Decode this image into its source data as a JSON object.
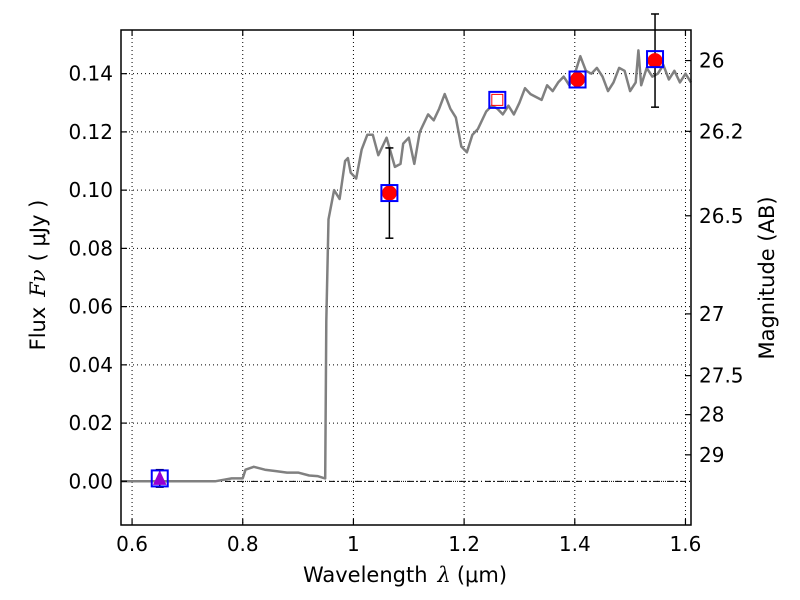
{
  "chart_data": {
    "type": "line",
    "title": "",
    "xlabel": {
      "prefix": "Wavelength",
      "symbol": "λ",
      "unit": "(μm)"
    },
    "ylabel": {
      "prefix": "Flux",
      "symbol": "Fν",
      "unit": "( μJy )"
    },
    "y2label": "Magnitude (AB)",
    "xlim": [
      0.58,
      1.61
    ],
    "ylim": [
      -0.015,
      0.155
    ],
    "x_ticks": [
      0.6,
      0.8,
      1.0,
      1.2,
      1.4,
      1.6
    ],
    "x_tick_labels": [
      "0.6",
      "0.8",
      "1",
      "1.2",
      "1.4",
      "1.6"
    ],
    "y_ticks": [
      0.0,
      0.02,
      0.04,
      0.06,
      0.08,
      0.1,
      0.12,
      0.14
    ],
    "y_tick_labels": [
      "0.00",
      "0.02",
      "0.04",
      "0.06",
      "0.08",
      "0.10",
      "0.12",
      "0.14"
    ],
    "y2_ticks": [
      {
        "label": "26",
        "flux": 0.1445
      },
      {
        "label": "26.2",
        "flux": 0.1202
      },
      {
        "label": "26.5",
        "flux": 0.0912
      },
      {
        "label": "27",
        "flux": 0.0575
      },
      {
        "label": "27.5",
        "flux": 0.0363
      },
      {
        "label": "28",
        "flux": 0.0229
      },
      {
        "label": "29",
        "flux": 0.0091
      }
    ],
    "grid": true,
    "zero_line": true,
    "colors": {
      "model": "#808080",
      "model_points": "#0000ff",
      "detections": "#ff0000",
      "upper_limit": "#9400d3",
      "errorbar": "#000000"
    },
    "model_spectrum": {
      "x": [
        0.58,
        0.65,
        0.7,
        0.75,
        0.78,
        0.8,
        0.805,
        0.82,
        0.84,
        0.86,
        0.88,
        0.9,
        0.92,
        0.935,
        0.945,
        0.949,
        0.951,
        0.955,
        0.965,
        0.975,
        0.985,
        0.99,
        0.995,
        1.005,
        1.015,
        1.025,
        1.035,
        1.045,
        1.06,
        1.075,
        1.085,
        1.09,
        1.1,
        1.11,
        1.12,
        1.135,
        1.145,
        1.155,
        1.165,
        1.175,
        1.185,
        1.195,
        1.205,
        1.215,
        1.225,
        1.24,
        1.25,
        1.26,
        1.27,
        1.28,
        1.29,
        1.3,
        1.31,
        1.32,
        1.33,
        1.34,
        1.35,
        1.36,
        1.37,
        1.38,
        1.39,
        1.4,
        1.405,
        1.41,
        1.42,
        1.43,
        1.44,
        1.45,
        1.46,
        1.47,
        1.48,
        1.49,
        1.5,
        1.51,
        1.515,
        1.52,
        1.53,
        1.54,
        1.55,
        1.56,
        1.57,
        1.58,
        1.59,
        1.6,
        1.61
      ],
      "y": [
        0.0,
        0.0,
        0.0,
        0.0,
        0.001,
        0.001,
        0.004,
        0.005,
        0.004,
        0.0035,
        0.003,
        0.003,
        0.002,
        0.0018,
        0.0012,
        0.001,
        0.055,
        0.09,
        0.1,
        0.097,
        0.11,
        0.111,
        0.106,
        0.104,
        0.114,
        0.119,
        0.119,
        0.112,
        0.118,
        0.108,
        0.109,
        0.116,
        0.118,
        0.109,
        0.12,
        0.126,
        0.124,
        0.128,
        0.133,
        0.128,
        0.125,
        0.115,
        0.113,
        0.119,
        0.121,
        0.127,
        0.129,
        0.128,
        0.126,
        0.129,
        0.126,
        0.13,
        0.135,
        0.133,
        0.132,
        0.131,
        0.136,
        0.134,
        0.137,
        0.139,
        0.136,
        0.14,
        0.143,
        0.146,
        0.141,
        0.14,
        0.142,
        0.139,
        0.134,
        0.137,
        0.142,
        0.141,
        0.134,
        0.137,
        0.148,
        0.136,
        0.142,
        0.139,
        0.14,
        0.143,
        0.138,
        0.141,
        0.137,
        0.14,
        0.137
      ]
    },
    "model_points": {
      "x": [
        0.65,
        1.065,
        1.26,
        1.405,
        1.545
      ],
      "y": [
        0.001,
        0.099,
        0.131,
        0.138,
        0.145
      ]
    },
    "detections": {
      "x": [
        1.065,
        1.405,
        1.545
      ],
      "y": [
        0.099,
        0.138,
        0.1445
      ],
      "yerr": [
        0.0155,
        0.0,
        0.016
      ]
    },
    "detection_open": {
      "x": [
        1.26
      ],
      "y": [
        0.131
      ]
    },
    "upper_limit": {
      "x": [
        0.65
      ],
      "y": [
        0.001
      ],
      "yerr": [
        0.003
      ]
    }
  }
}
